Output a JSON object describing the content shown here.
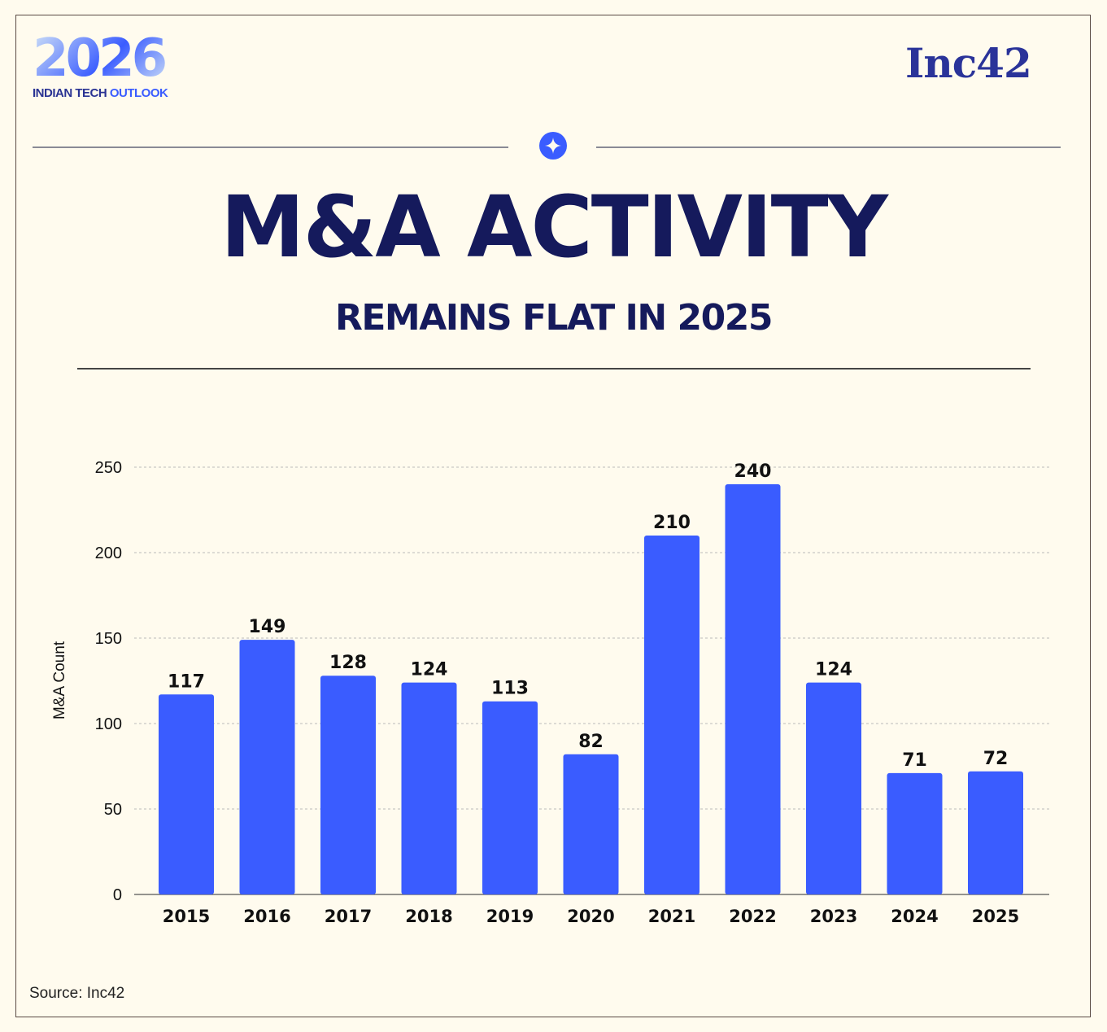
{
  "branding": {
    "logo_year": "2026",
    "logo_sub_1": "INDIAN TECH",
    "logo_sub_2": "OUTLOOK",
    "publisher": "Inc42"
  },
  "header": {
    "title": "M&A ACTIVITY",
    "subtitle": "REMAINS FLAT IN 2025"
  },
  "colors": {
    "background": "#fffbee",
    "bar": "#3a5cff",
    "title": "#151a5c"
  },
  "icons": {
    "divider": "four-point-star-icon"
  },
  "chart_data": {
    "type": "bar",
    "title": "",
    "xlabel": "",
    "ylabel": "M&A Count",
    "ylim": [
      0,
      250
    ],
    "yticks": [
      0,
      50,
      100,
      150,
      200,
      250
    ],
    "grid": true,
    "categories": [
      "2015",
      "2016",
      "2017",
      "2018",
      "2019",
      "2020",
      "2021",
      "2022",
      "2023",
      "2024",
      "2025"
    ],
    "values": [
      117,
      149,
      128,
      124,
      113,
      82,
      210,
      240,
      124,
      71,
      72
    ],
    "data_labels": true
  },
  "footer": {
    "source": "Source: Inc42"
  }
}
